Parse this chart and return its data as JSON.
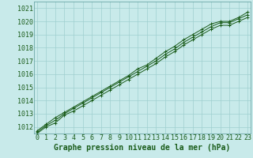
{
  "title": "Graphe pression niveau de la mer (hPa)",
  "hours": [
    0,
    1,
    2,
    3,
    4,
    5,
    6,
    7,
    8,
    9,
    10,
    11,
    12,
    13,
    14,
    15,
    16,
    17,
    18,
    19,
    20,
    21,
    22,
    23
  ],
  "ylim": [
    1011.5,
    1021.5
  ],
  "xlim": [
    -0.3,
    23.3
  ],
  "yticks": [
    1012,
    1013,
    1014,
    1015,
    1016,
    1017,
    1018,
    1019,
    1020,
    1021
  ],
  "background_color": "#c8eaea",
  "grid_color": "#9fcfcf",
  "line_color": "#1a5c1a",
  "line1": [
    1011.6,
    1012.1,
    1012.5,
    1013.0,
    1013.4,
    1013.8,
    1014.2,
    1014.6,
    1015.0,
    1015.4,
    1015.8,
    1016.2,
    1016.6,
    1017.0,
    1017.5,
    1017.9,
    1018.4,
    1018.8,
    1019.2,
    1019.6,
    1019.9,
    1019.9,
    1020.2,
    1020.5
  ],
  "line2": [
    1011.5,
    1012.0,
    1012.3,
    1012.9,
    1013.2,
    1013.6,
    1014.0,
    1014.4,
    1014.8,
    1015.2,
    1015.6,
    1016.0,
    1016.4,
    1016.8,
    1017.3,
    1017.7,
    1018.2,
    1018.6,
    1019.0,
    1019.4,
    1019.7,
    1019.7,
    1020.0,
    1020.3
  ],
  "line3": [
    1011.7,
    1012.2,
    1012.7,
    1013.1,
    1013.5,
    1013.9,
    1014.3,
    1014.7,
    1015.1,
    1015.5,
    1015.9,
    1016.4,
    1016.7,
    1017.2,
    1017.7,
    1018.1,
    1018.6,
    1019.0,
    1019.4,
    1019.8,
    1020.0,
    1020.0,
    1020.3,
    1020.7
  ],
  "title_fontsize": 7,
  "tick_fontsize": 6
}
